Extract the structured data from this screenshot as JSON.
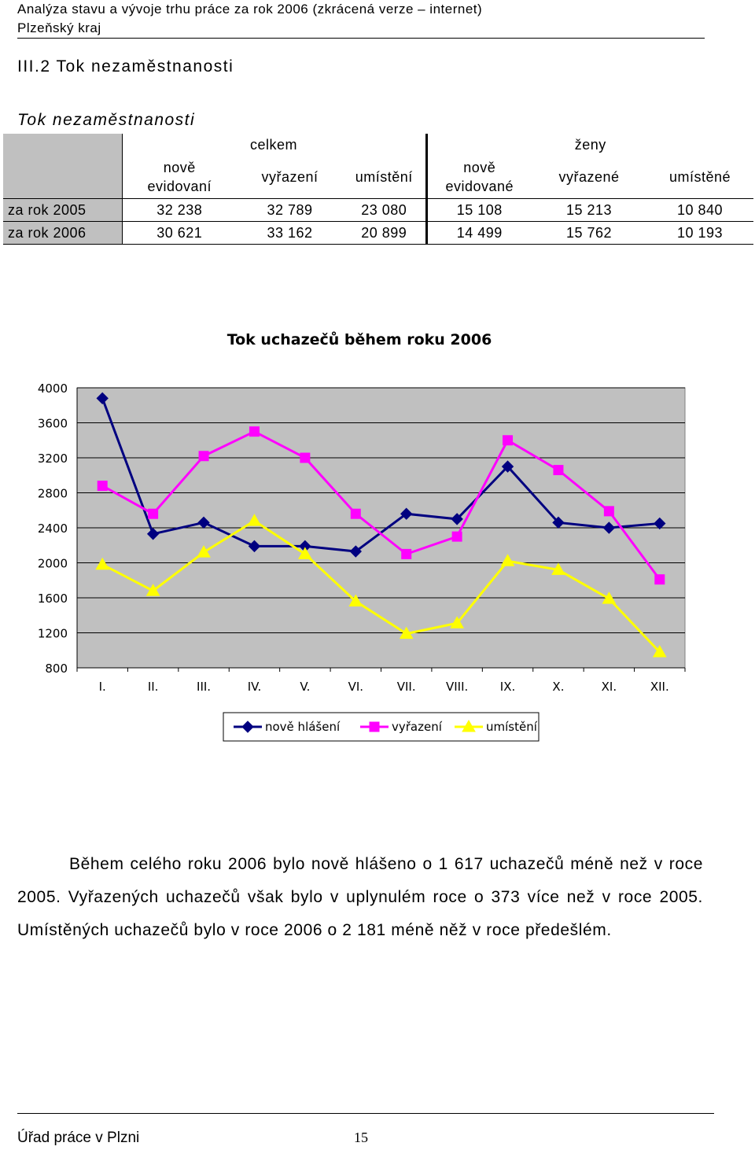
{
  "header": {
    "line1": "Analýza stavu a vývoje trhu práce za rok 2006 (zkrácená verze – internet)",
    "line2": "Plzeňský kraj"
  },
  "section_title": "III.2 Tok nezaměstnanosti",
  "table": {
    "title": "Tok nezaměstnanosti",
    "group_celkem": "celkem",
    "group_zeny": "ženy",
    "col_nove_evidovani": "nově evidovaní",
    "col_vyrazeni": "vyřazení",
    "col_umisteni": "umístění",
    "col_nove_evidovane": "nově evidované",
    "col_vyrazene": "vyřazené",
    "col_umistene": "umístěné",
    "rows": [
      {
        "label": "za rok 2005",
        "values": [
          "32 238",
          "32 789",
          "23 080",
          "15 108",
          "15 213",
          "10 840"
        ]
      },
      {
        "label": "za rok 2006",
        "values": [
          "30 621",
          "33 162",
          "20 899",
          "14 499",
          "15 762",
          "10 193"
        ]
      }
    ]
  },
  "chart_data": {
    "type": "line",
    "title": "Tok uchazečů během roku 2006",
    "categories": [
      "I.",
      "II.",
      "III.",
      "IV.",
      "V.",
      "VI.",
      "VII.",
      "VIII.",
      "IX.",
      "X.",
      "XI.",
      "XII."
    ],
    "ylim": [
      800,
      4000
    ],
    "yticks": [
      800,
      1200,
      1600,
      2000,
      2400,
      2800,
      3200,
      3600,
      4000
    ],
    "grid": true,
    "legend_position": "bottom",
    "series": [
      {
        "name": "nově hlášení",
        "color": "#000080",
        "marker": "diamond",
        "values": [
          3880,
          2330,
          2460,
          2190,
          2190,
          2130,
          2560,
          2500,
          3100,
          2460,
          2400,
          2450
        ]
      },
      {
        "name": "vyřazení",
        "color": "#ff00ff",
        "marker": "square",
        "values": [
          2880,
          2560,
          3220,
          3500,
          3200,
          2560,
          2100,
          2300,
          3400,
          3060,
          2590,
          1810
        ]
      },
      {
        "name": "umístění",
        "color": "#ffff00",
        "marker": "triangle",
        "values": [
          1980,
          1680,
          2120,
          2480,
          2100,
          1560,
          1190,
          1310,
          2020,
          1920,
          1590,
          980
        ]
      }
    ]
  },
  "paragraph": "Během celého roku 2006 bylo nově hlášeno o 1 617 uchazečů méně než v roce 2005. Vyřazených uchazečů však bylo v uplynulém roce o 373 více než v roce 2005. Umístěných uchazečů bylo v roce 2006 o 2 181 méně něž v roce předešlém.",
  "footer": {
    "office": "Úřad práce v Plzni",
    "page_number": "15"
  }
}
